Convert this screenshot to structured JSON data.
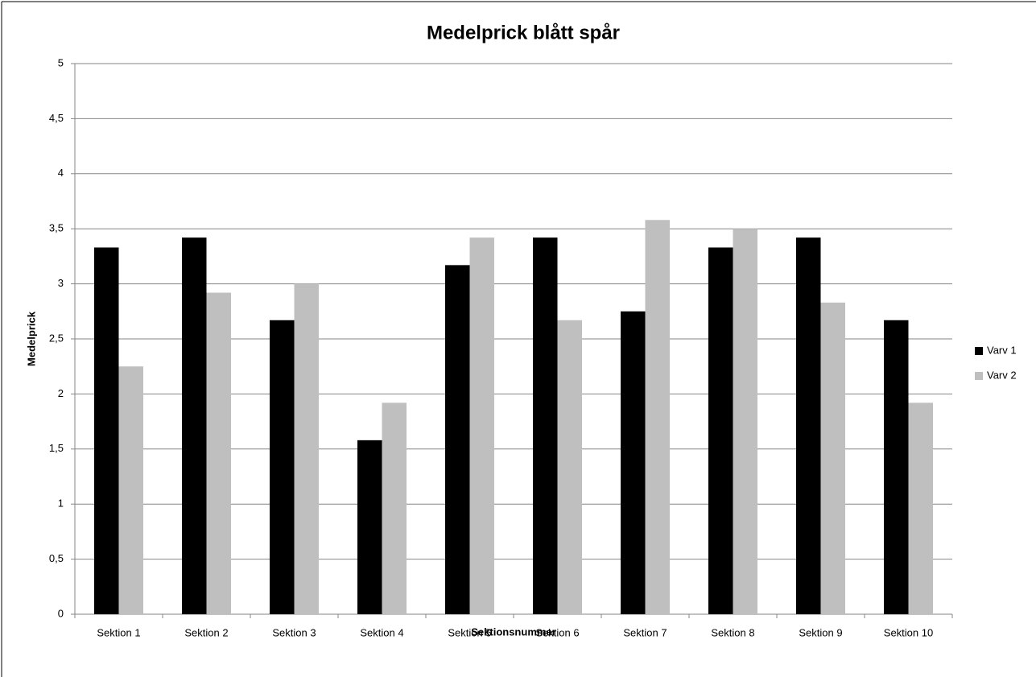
{
  "chart_data": {
    "type": "bar",
    "title": "Medelprick blått spår",
    "x_label": "Sektionsnummer",
    "y_label": "Medelprick",
    "categories": [
      "Sektion 1",
      "Sektion 2",
      "Sektion 3",
      "Sektion 4",
      "Sektion 5",
      "Sektion 6",
      "Sektion 7",
      "Sektion 8",
      "Sektion 9",
      "Sektion 10"
    ],
    "series": [
      {
        "name": "Varv 1",
        "color": "#000000",
        "values": [
          3.33,
          3.42,
          2.67,
          1.58,
          3.17,
          3.42,
          2.75,
          3.33,
          3.42,
          2.67
        ]
      },
      {
        "name": "Varv 2",
        "color": "#bfbfbf",
        "values": [
          2.25,
          2.92,
          3.0,
          1.92,
          3.42,
          2.67,
          3.58,
          3.5,
          2.83,
          1.92
        ]
      }
    ],
    "ylim": [
      0,
      5
    ],
    "yticks": [
      0,
      {
        "value": 0.5,
        "label": "0,5"
      },
      1,
      {
        "value": 1.5,
        "label": "1,5"
      },
      2,
      {
        "value": 2.5,
        "label": "2,5"
      },
      3,
      {
        "value": 3.5,
        "label": "3,5"
      },
      4,
      {
        "value": 4.5,
        "label": "4,5"
      },
      5
    ],
    "grid": true,
    "legend": "right"
  }
}
